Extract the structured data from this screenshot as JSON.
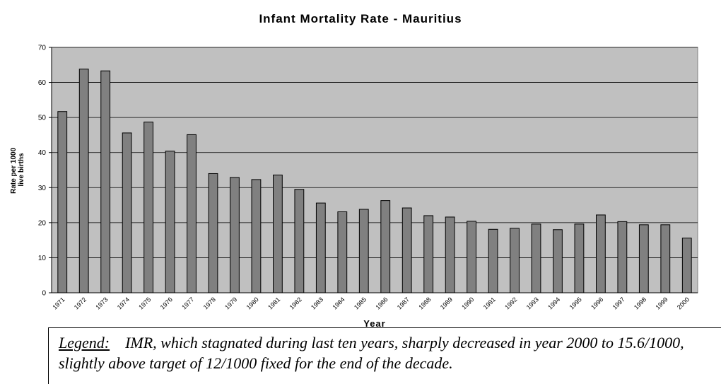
{
  "chart_data": {
    "type": "bar",
    "title": "Infant Mortality Rate - Mauritius",
    "x_label": "Year",
    "y_label": [
      "Rate per 1000",
      "live births"
    ],
    "categories": [
      "1971",
      "1972",
      "1973",
      "1974",
      "1975",
      "1976",
      "1977",
      "1978",
      "1979",
      "1980",
      "1981",
      "1982",
      "1983",
      "1984",
      "1985",
      "1986",
      "1987",
      "1988",
      "1989",
      "1990",
      "1991",
      "1992",
      "1993",
      "1994",
      "1995",
      "1996",
      "1997",
      "1998",
      "1999",
      "2000"
    ],
    "values": [
      51.7,
      63.8,
      63.3,
      45.6,
      48.7,
      40.4,
      45.1,
      34.0,
      32.9,
      32.3,
      33.6,
      29.5,
      25.6,
      23.1,
      23.8,
      26.3,
      24.2,
      22.0,
      21.6,
      20.4,
      18.1,
      18.4,
      19.6,
      18.0,
      19.6,
      22.2,
      20.3,
      19.4,
      19.4,
      15.6
    ],
    "color": "#808080",
    "background": "#c0c0c0",
    "ylim": [
      0,
      70
    ],
    "yticks": [
      0,
      10,
      20,
      30,
      40,
      50,
      60,
      70
    ],
    "grid": true
  },
  "note": {
    "key": "Legend:",
    "text": "IMR, which stagnated during last ten years, sharply decreased in year 2000 to 15.6/1000, slightly above target of 12/1000 fixed for the end of the decade."
  }
}
